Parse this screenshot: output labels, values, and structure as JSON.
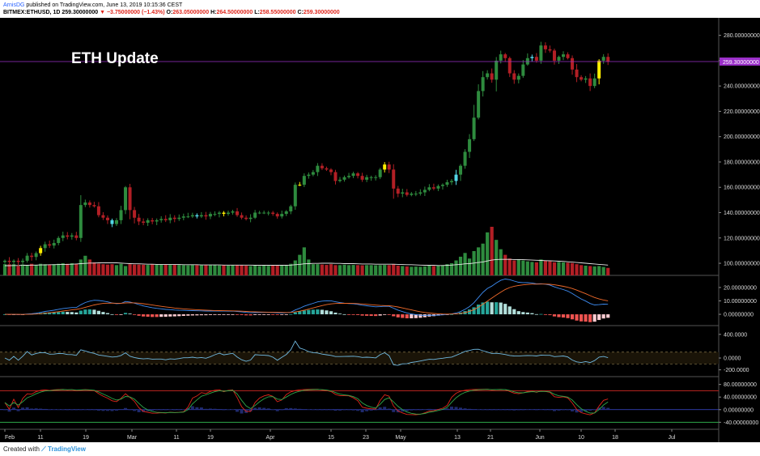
{
  "header": {
    "author": "ArnisDG",
    "published": "published on TradingView.com, June 13, 2019 10:15:36 CEST",
    "symbol": "BITMEX:ETHUSD, 1D",
    "last": "259.30000000",
    "change": "▼ −3.75000000 (−1.43%)",
    "open_label": "O:",
    "open": "263.05000000",
    "high_label": "H:",
    "high": "264.50000000",
    "low_label": "L:",
    "low": "258.55000000",
    "close_label": "C:",
    "close": "259.30000000"
  },
  "annotation": "ETH Update",
  "footer": {
    "created_with": "Created with",
    "brand": "TradingView"
  },
  "colors": {
    "up": "#2e8b3e",
    "down": "#b21f25",
    "highlight_yellow": "#ffee00",
    "highlight_cyan": "#52d6e6",
    "price_line": "#9b2fc9",
    "macd": "#3d8cf2",
    "signal": "#f06a2a",
    "stoch_k": "#e0251b",
    "stoch_d": "#2ea84a"
  },
  "chart_data": [
    {
      "type": "candlestick",
      "pane": "price",
      "annotation": "ETH Update",
      "ylim": [
        93,
        290
      ],
      "y_ticks": [
        "280.00000000",
        "260.00000000",
        "240.00000000",
        "220.00000000",
        "200.00000000",
        "180.00000000",
        "160.00000000",
        "140.00000000",
        "120.00000000",
        "100.00000000"
      ],
      "current_price": "259.30000000",
      "x_ticks": [
        "Feb",
        "11",
        "19",
        "Mar",
        "11",
        "19",
        "Apr",
        "15",
        "23",
        "May",
        "13",
        "21",
        "Jun",
        "10",
        "18",
        "Jul"
      ],
      "close": [
        102,
        101,
        102,
        101,
        102,
        106,
        105,
        108,
        112,
        115,
        114,
        116,
        120,
        122,
        121,
        122,
        120,
        146,
        148,
        146,
        145,
        138,
        136,
        134,
        131,
        134,
        142,
        160,
        142,
        136,
        133,
        132,
        134,
        133,
        134,
        135,
        134,
        136,
        135,
        136,
        137,
        137,
        138,
        137,
        138,
        137,
        139,
        139,
        140,
        139,
        140,
        141,
        138,
        136,
        135,
        136,
        140,
        140,
        140,
        140,
        139,
        137,
        139,
        141,
        145,
        162,
        162,
        169,
        170,
        172,
        177,
        175,
        174,
        172,
        165,
        166,
        168,
        169,
        171,
        169,
        166,
        168,
        168,
        168,
        174,
        178,
        174,
        159,
        155,
        156,
        154,
        155,
        155,
        156,
        158,
        160,
        159,
        161,
        162,
        164,
        165,
        170,
        177,
        188,
        198,
        215,
        236,
        247,
        250,
        245,
        260,
        265,
        262,
        250,
        245,
        248,
        257,
        262,
        263,
        260,
        272,
        269,
        268,
        260,
        263,
        265,
        262,
        253,
        247,
        245,
        246,
        240,
        246,
        260,
        263,
        259.3
      ],
      "volume": [
        60,
        60,
        60,
        50,
        58,
        55,
        62,
        55,
        62,
        60,
        58,
        60,
        62,
        65,
        62,
        65,
        62,
        85,
        105,
        85,
        70,
        63,
        60,
        58,
        60,
        55,
        62,
        50,
        60,
        58,
        58,
        57,
        56,
        59,
        58,
        57,
        58,
        56,
        58,
        56,
        55,
        54,
        56,
        55,
        54,
        56,
        54,
        55,
        53,
        54,
        53,
        55,
        56,
        55,
        52,
        50,
        53,
        50,
        52,
        51,
        55,
        52,
        53,
        54,
        62,
        80,
        110,
        150,
        85,
        60,
        60,
        58,
        56,
        60,
        55,
        55,
        57,
        55,
        56,
        55,
        54,
        55,
        55,
        54,
        55,
        56,
        55,
        60,
        52,
        50,
        48,
        46,
        47,
        46,
        48,
        52,
        50,
        52,
        55,
        60,
        65,
        80,
        100,
        120,
        90,
        130,
        150,
        170,
        230,
        260,
        190,
        140,
        110,
        90,
        80,
        85,
        80,
        75,
        72,
        70,
        85,
        80,
        75,
        70,
        72,
        70,
        68,
        66,
        60,
        55,
        52,
        50,
        48,
        50,
        45,
        40
      ],
      "volume_ma": [
        52,
        52,
        53,
        53,
        54,
        54,
        55,
        55,
        56,
        56,
        57,
        57,
        58,
        58,
        59,
        60,
        61,
        63,
        64,
        66,
        66,
        67,
        67,
        67,
        67,
        67,
        66,
        64,
        63,
        62,
        62,
        61,
        60,
        60,
        59,
        59,
        58,
        58,
        58,
        58,
        57,
        57,
        57,
        57,
        56,
        56,
        56,
        56,
        56,
        55,
        55,
        55,
        55,
        55,
        55,
        55,
        54,
        54,
        54,
        54,
        54,
        54,
        54,
        54,
        55,
        57,
        59,
        62,
        63,
        64,
        64,
        65,
        65,
        65,
        64,
        64,
        63,
        63,
        63,
        62,
        61,
        61,
        61,
        60,
        60,
        60,
        60,
        60,
        59,
        58,
        57,
        57,
        56,
        55,
        54,
        54,
        54,
        53,
        53,
        54,
        55,
        57,
        59,
        62,
        63,
        66,
        69,
        72,
        77,
        82,
        85,
        86,
        86,
        86,
        85,
        85,
        84,
        83,
        82,
        81,
        80,
        79,
        78,
        77,
        76,
        75,
        73,
        71,
        69,
        67,
        65,
        63,
        61,
        59,
        57,
        55
      ]
    },
    {
      "type": "histogram+line",
      "pane": "macd",
      "ylim": [
        -6,
        26
      ],
      "y_ticks": [
        "20.00000000",
        "10.00000000",
        "0.00000000"
      ]
    },
    {
      "type": "line",
      "pane": "oscillator",
      "ylim": [
        -260,
        480
      ],
      "y_ticks": [
        "400.0000",
        "0.0000",
        "-200.0000"
      ],
      "levels": [
        100,
        -100
      ]
    },
    {
      "type": "line",
      "pane": "stochastic",
      "ylim": [
        -52,
        92
      ],
      "y_ticks": [
        "80.00000000",
        "40.00000000",
        "0.00000000",
        "-40.00000000"
      ],
      "levels": [
        60,
        -40
      ]
    }
  ]
}
